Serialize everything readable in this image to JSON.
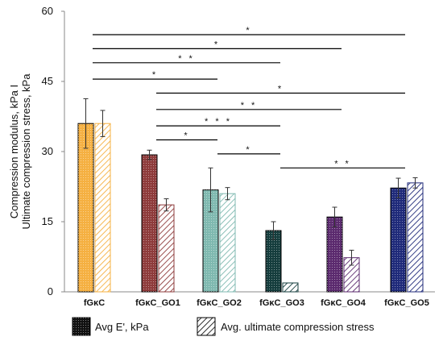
{
  "chart_data": {
    "type": "bar",
    "title": "",
    "ylabel_lines": [
      "Compression modulus, kPa I",
      "Ultimate compression stress, kPa"
    ],
    "xlabel": "",
    "ylim": [
      0,
      60
    ],
    "yticks": [
      0,
      15,
      30,
      45,
      60
    ],
    "grid": false,
    "legend_position": "bottom",
    "categories": [
      "fGκC",
      "fGκC_GO1",
      "fGκC_GO2",
      "fGκC_GO3",
      "fGκC_GO4",
      "fGκC_GO5"
    ],
    "category_colors": [
      "#F5B041",
      "#8E3B3B",
      "#7FB9B0",
      "#153D3D",
      "#5B2A6E",
      "#1F2A7A"
    ],
    "series": [
      {
        "name": "Avg E', kPa",
        "pattern": "dots",
        "values": [
          36.0,
          29.3,
          21.8,
          13.1,
          16.0,
          22.2
        ],
        "errors": [
          5.3,
          1.0,
          4.7,
          1.9,
          2.1,
          2.1
        ]
      },
      {
        "name": "Avg. ultimate compression stress",
        "pattern": "hatch",
        "values": [
          36.0,
          18.6,
          21.0,
          1.9,
          7.3,
          23.3
        ],
        "errors": [
          2.8,
          1.3,
          1.3,
          0.0,
          1.6,
          1.1
        ]
      }
    ],
    "significance": [
      {
        "from": 0,
        "to": 5,
        "y": 55.0,
        "label": "*"
      },
      {
        "from": 0,
        "to": 4,
        "y": 52.0,
        "label": "*"
      },
      {
        "from": 0,
        "to": 3,
        "y": 49.0,
        "label": "* *"
      },
      {
        "from": 0,
        "to": 2,
        "y": 45.5,
        "label": "*"
      },
      {
        "from": 1,
        "to": 5,
        "y": 42.5,
        "label": "*"
      },
      {
        "from": 1,
        "to": 4,
        "y": 39.0,
        "label": "* *"
      },
      {
        "from": 1,
        "to": 3,
        "y": 35.5,
        "label": "* * *"
      },
      {
        "from": 1,
        "to": 2,
        "y": 32.5,
        "label": "*"
      },
      {
        "from": 2,
        "to": 3,
        "y": 29.5,
        "label": "*"
      },
      {
        "from": 3,
        "to": 5,
        "y": 26.5,
        "label": "* *"
      }
    ]
  }
}
